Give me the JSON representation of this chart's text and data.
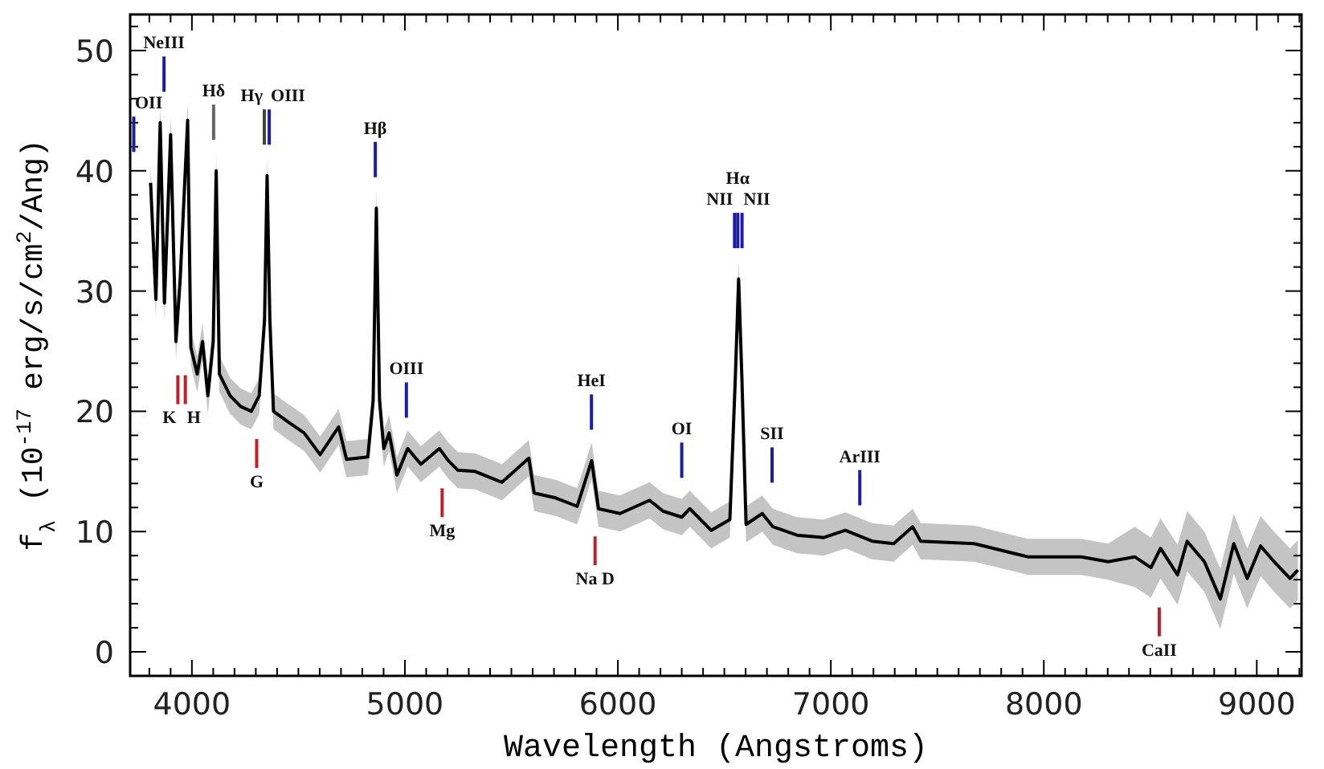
{
  "chart_data": {
    "type": "line",
    "xlabel": "Wavelength (Angstroms)",
    "ylabel": "f$_{λ}$ (10$^{-17}$ erg/s/cm$^{2}$/Ang)",
    "xlim": [
      3710,
      9210
    ],
    "ylim": [
      -2,
      53
    ],
    "xticks": [
      {
        "value": 3800,
        "label": null
      },
      {
        "value": 3900,
        "label": null
      },
      4000,
      {
        "value": 4100,
        "label": null
      },
      {
        "value": 4200,
        "label": null
      },
      {
        "value": 4300,
        "label": null
      },
      {
        "value": 4400,
        "label": null
      },
      {
        "value": 4500,
        "label": null
      },
      {
        "value": 4600,
        "label": null
      },
      {
        "value": 4700,
        "label": null
      },
      {
        "value": 4800,
        "label": null
      },
      {
        "value": 4900,
        "label": null
      },
      5000,
      {
        "value": 5100,
        "label": null
      },
      {
        "value": 5200,
        "label": null
      },
      {
        "value": 5300,
        "label": null
      },
      {
        "value": 5400,
        "label": null
      },
      {
        "value": 5500,
        "label": null
      },
      {
        "value": 5600,
        "label": null
      },
      {
        "value": 5700,
        "label": null
      },
      {
        "value": 5800,
        "label": null
      },
      {
        "value": 5900,
        "label": null
      },
      6000,
      {
        "value": 6100,
        "label": null
      },
      {
        "value": 6200,
        "label": null
      },
      {
        "value": 6300,
        "label": null
      },
      {
        "value": 6400,
        "label": null
      },
      {
        "value": 6500,
        "label": null
      },
      {
        "value": 6600,
        "label": null
      },
      {
        "value": 6700,
        "label": null
      },
      {
        "value": 6800,
        "label": null
      },
      {
        "value": 6900,
        "label": null
      },
      7000,
      {
        "value": 7100,
        "label": null
      },
      {
        "value": 7200,
        "label": null
      },
      {
        "value": 7300,
        "label": null
      },
      {
        "value": 7400,
        "label": null
      },
      {
        "value": 7500,
        "label": null
      },
      {
        "value": 7600,
        "label": null
      },
      {
        "value": 7700,
        "label": null
      },
      {
        "value": 7800,
        "label": null
      },
      {
        "value": 7900,
        "label": null
      },
      8000,
      {
        "value": 8100,
        "label": null
      },
      {
        "value": 8200,
        "label": null
      },
      {
        "value": 8300,
        "label": null
      },
      {
        "value": 8400,
        "label": null
      },
      {
        "value": 8500,
        "label": null
      },
      {
        "value": 8600,
        "label": null
      },
      {
        "value": 8700,
        "label": null
      },
      {
        "value": 8800,
        "label": null
      },
      {
        "value": 8900,
        "label": null
      },
      9000,
      {
        "value": 9100,
        "label": null
      },
      {
        "value": 9200,
        "label": null
      }
    ],
    "yticks": [
      0,
      {
        "value": 2,
        "label": null
      },
      {
        "value": 4,
        "label": null
      },
      {
        "value": 6,
        "label": null
      },
      {
        "value": 8,
        "label": null
      },
      10,
      {
        "value": 12,
        "label": null
      },
      {
        "value": 14,
        "label": null
      },
      {
        "value": 16,
        "label": null
      },
      {
        "value": 18,
        "label": null
      },
      20,
      {
        "value": 22,
        "label": null
      },
      {
        "value": 24,
        "label": null
      },
      {
        "value": 26,
        "label": null
      },
      {
        "value": 28,
        "label": null
      },
      30,
      {
        "value": 32,
        "label": null
      },
      {
        "value": 34,
        "label": null
      },
      {
        "value": 36,
        "label": null
      },
      {
        "value": 38,
        "label": null
      },
      40,
      {
        "value": 42,
        "label": null
      },
      {
        "value": 44,
        "label": null
      },
      {
        "value": 46,
        "label": null
      },
      {
        "value": 48,
        "label": null
      },
      50,
      {
        "value": 52,
        "label": null
      }
    ],
    "grid": false,
    "series": [
      {
        "color": "#000000",
        "x": [
          3806,
          3831,
          3851,
          3871,
          3900,
          3925,
          3945,
          3980,
          3995,
          4025,
          4050,
          4075,
          4100,
          4114,
          4129,
          4179,
          4229,
          4279,
          4316,
          4341,
          4353,
          4366,
          4383,
          4453,
          4527,
          4602,
          4689,
          4726,
          4826,
          4851,
          4866,
          4881,
          4901,
          4926,
          4963,
          5013,
          5075,
          5162,
          5204,
          5249,
          5330,
          5456,
          5582,
          5607,
          5708,
          5809,
          5877,
          5909,
          6010,
          6149,
          6212,
          6300,
          6338,
          6438,
          6526,
          6552,
          6567,
          6582,
          6602,
          6678,
          6728,
          6841,
          6967,
          7068,
          7194,
          7295,
          7384,
          7422,
          7673,
          7925,
          8176,
          8302,
          8427,
          8503,
          8548,
          8628,
          8673,
          8754,
          8829,
          8892,
          8955,
          9018,
          9081,
          9156,
          9193
        ],
        "values": [
          39,
          29.3,
          44,
          29,
          43,
          25.8,
          31,
          44.2,
          25.3,
          23.1,
          25.8,
          21.3,
          25.8,
          40,
          23.1,
          21.3,
          20.4,
          20,
          21.3,
          27.6,
          39.6,
          27.6,
          20,
          19.1,
          18.2,
          16.4,
          18.7,
          16,
          16.2,
          20.9,
          36.9,
          20.9,
          16.9,
          18.2,
          14.7,
          16.9,
          15.6,
          16.9,
          15.9,
          15.1,
          15,
          14.1,
          16.1,
          13.2,
          12.8,
          12.1,
          15.9,
          11.9,
          11.5,
          12.6,
          11.7,
          11.2,
          11.9,
          10.1,
          11,
          23,
          31,
          23,
          10.6,
          11.5,
          10.4,
          9.7,
          9.5,
          10.1,
          9.2,
          9,
          10.4,
          9.2,
          9,
          7.9,
          7.9,
          7.5,
          7.9,
          7,
          8.6,
          6.4,
          9.2,
          7.5,
          4.4,
          9,
          6.1,
          8.8,
          7.5,
          6.1,
          6.8
        ],
        "lower": [
          37.5,
          27.8,
          42.5,
          27.5,
          41.5,
          24.3,
          29.5,
          42.7,
          23.8,
          21.6,
          24.3,
          19.8,
          24.3,
          38.5,
          21.6,
          19.8,
          18.9,
          18.5,
          19.8,
          26.1,
          38.1,
          26.1,
          18.5,
          17.6,
          16.7,
          14.9,
          17.2,
          14.5,
          14.7,
          19.4,
          35.4,
          19.4,
          15.4,
          16.7,
          13.2,
          15.4,
          14.1,
          15.4,
          14.4,
          13.6,
          13.5,
          12.6,
          14.6,
          11.7,
          11.3,
          10.6,
          14.4,
          10.4,
          10,
          11.1,
          10.2,
          9.7,
          10.4,
          8.6,
          9.5,
          21.5,
          29.5,
          21.5,
          9.1,
          10,
          8.9,
          8.2,
          8,
          8.6,
          7.7,
          7.5,
          8.9,
          7.7,
          7.5,
          6.4,
          6.4,
          6,
          5.4,
          4.5,
          6.1,
          3.9,
          6.7,
          5,
          1.9,
          6.5,
          3.6,
          6.3,
          5,
          3.6,
          4.3
        ],
        "upper": [
          40.5,
          30.8,
          45.5,
          30.5,
          44.5,
          27.3,
          32.5,
          45.7,
          26.8,
          24.6,
          27.3,
          22.8,
          27.3,
          41.5,
          24.6,
          22.8,
          21.9,
          21.5,
          22.8,
          29.1,
          41.1,
          29.1,
          21.5,
          20.6,
          19.7,
          17.9,
          20.2,
          17.5,
          17.7,
          22.4,
          38.4,
          22.4,
          18.4,
          19.7,
          16.2,
          18.4,
          17.1,
          18.4,
          17.4,
          16.6,
          16.5,
          15.6,
          17.6,
          14.7,
          14.3,
          13.6,
          17.4,
          13.4,
          13,
          14.1,
          13.2,
          12.7,
          13.4,
          11.6,
          12.5,
          24.5,
          32.5,
          24.5,
          12.1,
          13,
          11.9,
          11.2,
          11,
          11.6,
          10.7,
          10.5,
          11.9,
          10.7,
          10.5,
          9.4,
          9.4,
          9,
          10.4,
          9.5,
          11.1,
          8.9,
          11.7,
          10,
          6.9,
          11.5,
          8.6,
          11.3,
          10,
          8.6,
          9.3
        ]
      }
    ],
    "ref_lines": [
      {
        "axis": "x",
        "value": 3727,
        "label": "OII",
        "color": "#1c1ca8"
      },
      {
        "axis": "x",
        "value": 3869,
        "label": "NeIII",
        "color": "#1c1ca8"
      },
      {
        "axis": "x",
        "value": 4102,
        "label": "Hδ",
        "color": "#666666"
      },
      {
        "axis": "x",
        "value": 4340,
        "label": "Hγ",
        "color": "#444444"
      },
      {
        "axis": "x",
        "value": 4363,
        "label": "OIII",
        "color": "#1c1ca8"
      },
      {
        "axis": "x",
        "value": 4861,
        "label": "Hβ",
        "color": "#1c1ca8"
      },
      {
        "axis": "x",
        "value": 5007,
        "label": "OIII",
        "color": "#1c1ca8"
      },
      {
        "axis": "x",
        "value": 5876,
        "label": "HeI",
        "color": "#1c1ca8"
      },
      {
        "axis": "x",
        "value": 6300,
        "label": "OI",
        "color": "#1c1ca8"
      },
      {
        "axis": "x",
        "value": 6548,
        "label": "NII",
        "color": "#1c1ca8"
      },
      {
        "axis": "x",
        "value": 6563,
        "label": "Hα",
        "color": "#1c1ca8"
      },
      {
        "axis": "x",
        "value": 6583,
        "label": "NII",
        "color": "#1c1ca8"
      },
      {
        "axis": "x",
        "value": 6724,
        "label": "SII",
        "color": "#1c1ca8"
      },
      {
        "axis": "x",
        "value": 7136,
        "label": "ArIII",
        "color": "#1c1ca8"
      },
      {
        "axis": "x",
        "value": 3934,
        "label": "K",
        "color": "#c0202a"
      },
      {
        "axis": "x",
        "value": 3969,
        "label": "H",
        "color": "#c0202a"
      },
      {
        "axis": "x",
        "value": 4304,
        "label": "G",
        "color": "#c0202a"
      },
      {
        "axis": "x",
        "value": 5175,
        "label": "Mg",
        "color": "#c0202a"
      },
      {
        "axis": "x",
        "value": 5893,
        "label": "Na D",
        "color": "#c0202a"
      },
      {
        "axis": "x",
        "value": 8542,
        "label": "CaII",
        "color": "#c0202a"
      }
    ]
  }
}
